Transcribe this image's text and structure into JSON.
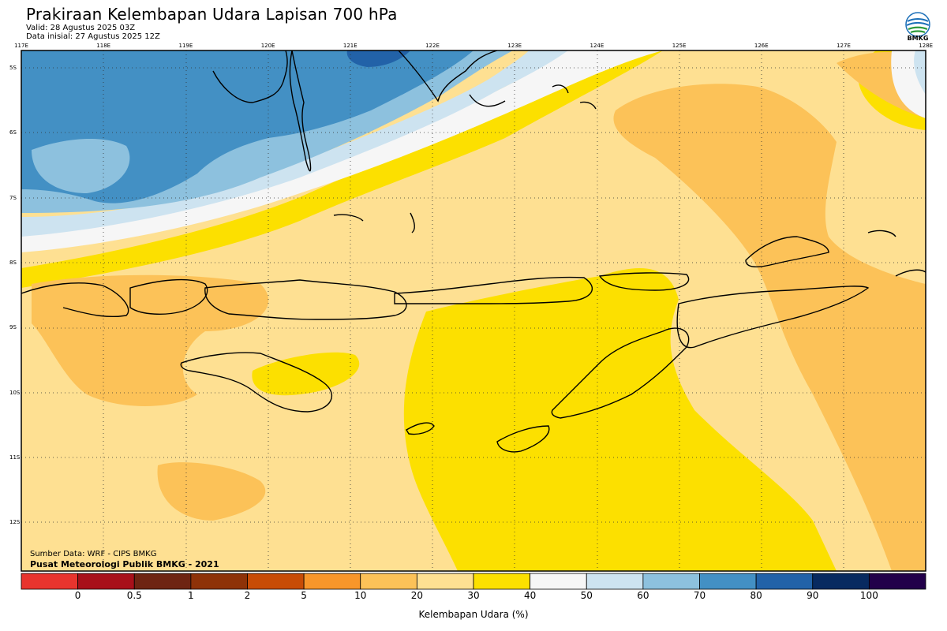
{
  "header": {
    "title": "Prakiraan Kelembapan Udara Lapisan 700 hPa",
    "valid": "Valid: 28 Agustus 2025 03Z",
    "init": "Data inisial: 27 Agustus 2025 12Z",
    "logo_text": "BMKG"
  },
  "axes": {
    "lon_ticks": [
      "117E",
      "118E",
      "119E",
      "120E",
      "121E",
      "122E",
      "123E",
      "124E",
      "125E",
      "126E",
      "127E",
      "128E"
    ],
    "lat_ticks": [
      "5S",
      "6S",
      "7S",
      "8S",
      "9S",
      "10S",
      "11S",
      "12S"
    ]
  },
  "credits": {
    "source": "Sumber Data: WRF - CIPS BMKG",
    "center": "Pusat Meteorologi Publik BMKG - 2021"
  },
  "colorbar": {
    "title": "Kelembapan Udara (%)",
    "labels": [
      "0",
      "0.5",
      "1",
      "2",
      "5",
      "10",
      "20",
      "30",
      "40",
      "50",
      "60",
      "70",
      "80",
      "90",
      "100"
    ],
    "colors": [
      "#e8342e",
      "#a8101a",
      "#6e2412",
      "#8e3208",
      "#c84c06",
      "#f8962a",
      "#fcc258",
      "#fee092",
      "#fce000",
      "#f6f6f6",
      "#cde3f0",
      "#8dc1de",
      "#4390c4",
      "#2262a8",
      "#082a60",
      "#22004a"
    ]
  },
  "palette": {
    "band_10_20": "#fcc258",
    "band_20_30": "#fee092",
    "band_30_40": "#fce000",
    "band_40_50": "#f6f6f6",
    "band_50_60": "#cde3f0",
    "band_60_70": "#8dc1de",
    "band_70_80": "#4390c4",
    "band_80_90": "#2262a8"
  }
}
